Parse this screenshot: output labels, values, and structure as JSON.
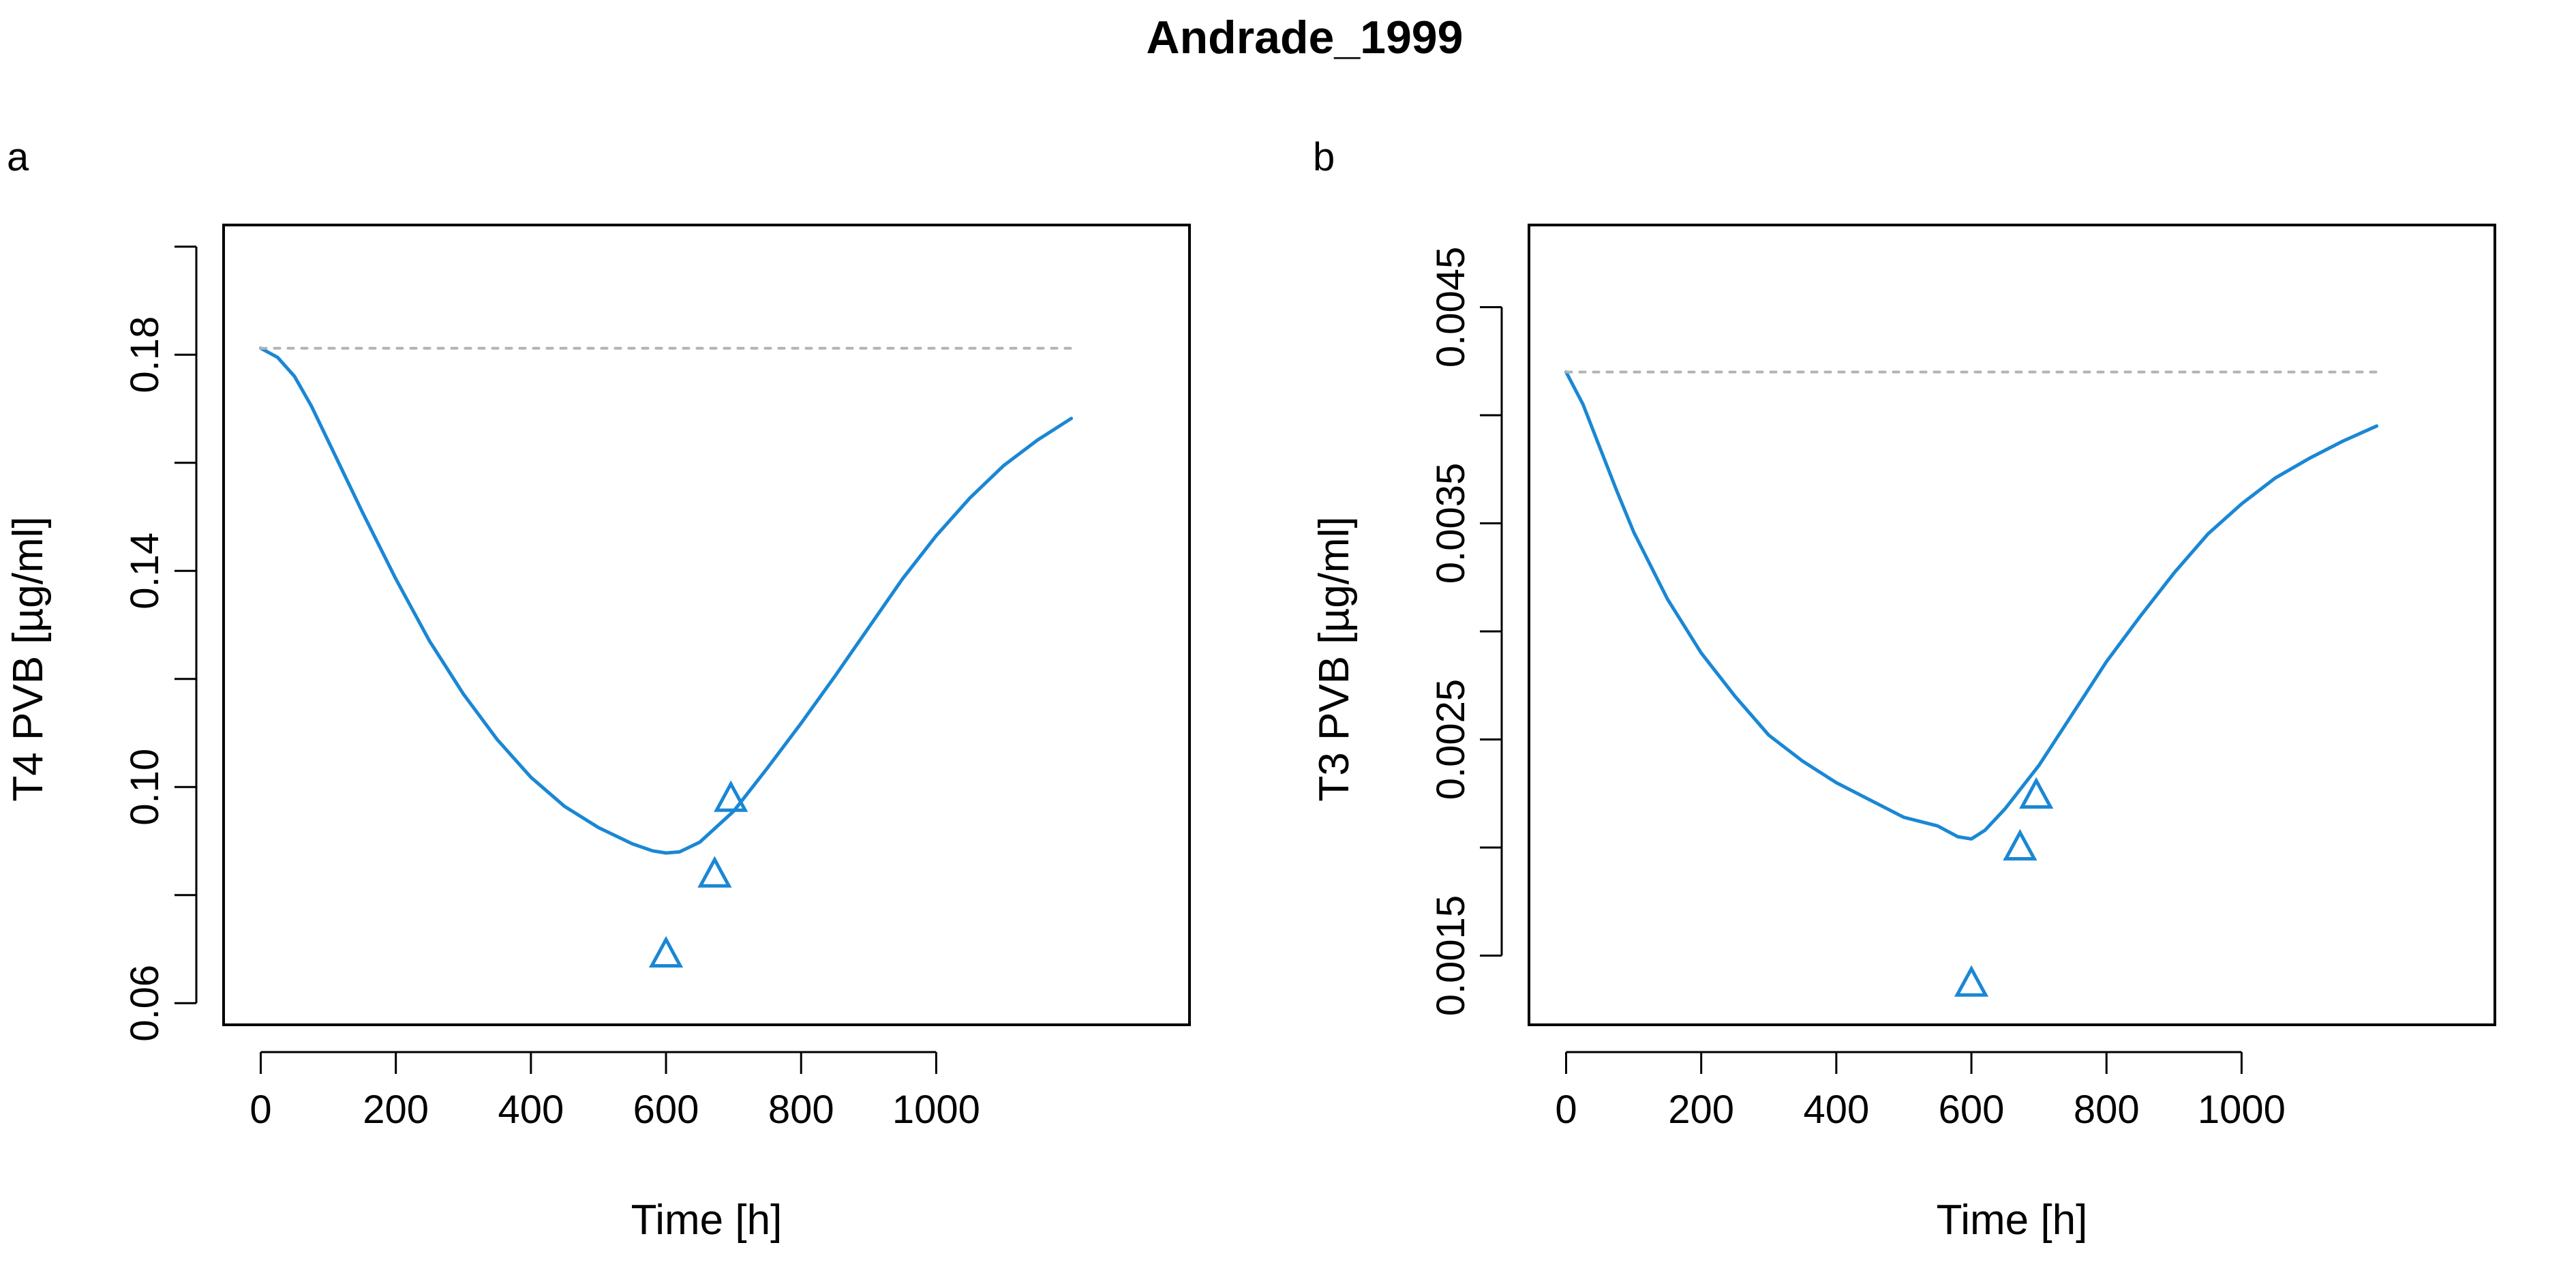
{
  "figure": {
    "title": "Andrade_1999"
  },
  "chart_data": [
    {
      "type": "line",
      "panel_label": "a",
      "title": "",
      "xlabel": "Time [h]",
      "ylabel": "T4 PVB [µg/ml]",
      "xlim": [
        -55,
        1375
      ],
      "ylim": [
        0.056,
        0.204
      ],
      "xticks": [
        0,
        200,
        400,
        600,
        800,
        1000
      ],
      "yticks": [
        0.06,
        0.08,
        0.1,
        0.12,
        0.14,
        0.16,
        0.18,
        0.2
      ],
      "ytick_labels": [
        "0.06",
        "",
        "0.10",
        "",
        "0.14",
        "",
        "0.18",
        ""
      ],
      "grid": false,
      "legend": "none",
      "colors": {
        "model": "#1a87d4",
        "baseline": "#b3b3b3",
        "observed": "#1a87d4"
      },
      "series": [
        {
          "role": "model",
          "style": "solid",
          "x": [
            0,
            25,
            50,
            75,
            100,
            150,
            200,
            250,
            300,
            350,
            400,
            450,
            500,
            550,
            580,
            600,
            620,
            650,
            700,
            750,
            800,
            850,
            900,
            950,
            1000,
            1050,
            1100,
            1150,
            1200
          ],
          "y": [
            0.1812,
            0.1795,
            0.176,
            0.1705,
            0.164,
            0.151,
            0.1385,
            0.127,
            0.1172,
            0.1088,
            0.1018,
            0.0964,
            0.0925,
            0.0895,
            0.0882,
            0.0878,
            0.088,
            0.0898,
            0.0955,
            0.1035,
            0.1118,
            0.1205,
            0.1295,
            0.1385,
            0.1465,
            0.1535,
            0.1595,
            0.1642,
            0.1682
          ]
        },
        {
          "role": "baseline",
          "style": "dotted",
          "x": [
            0,
            1200
          ],
          "y": [
            0.1812,
            0.1812
          ]
        },
        {
          "role": "observed",
          "style": "triangles",
          "x": [
            600,
            672,
            696
          ],
          "y": [
            0.069,
            0.0838,
            0.0978
          ]
        }
      ]
    },
    {
      "type": "line",
      "panel_label": "b",
      "title": "",
      "xlabel": "Time [h]",
      "ylabel": "T3 PVB [µg/ml]",
      "xlim": [
        -55,
        1375
      ],
      "ylim": [
        0.00118,
        0.00488
      ],
      "xticks": [
        0,
        200,
        400,
        600,
        800,
        1000
      ],
      "yticks": [
        0.0015,
        0.002,
        0.0025,
        0.003,
        0.0035,
        0.004,
        0.0045
      ],
      "ytick_labels": [
        "0.0015",
        "",
        "0.0025",
        "",
        "0.0035",
        "",
        "0.0045"
      ],
      "grid": false,
      "legend": "none",
      "colors": {
        "model": "#1a87d4",
        "baseline": "#b3b3b3",
        "observed": "#1a87d4"
      },
      "series": [
        {
          "role": "model",
          "style": "solid",
          "x": [
            0,
            25,
            50,
            75,
            100,
            150,
            200,
            250,
            300,
            350,
            400,
            450,
            500,
            550,
            580,
            600,
            620,
            650,
            700,
            750,
            800,
            850,
            900,
            950,
            1000,
            1050,
            1100,
            1150,
            1200
          ],
          "y": [
            0.0042,
            0.00405,
            0.00385,
            0.00365,
            0.00346,
            0.00315,
            0.0029,
            0.0027,
            0.00252,
            0.0024,
            0.0023,
            0.00222,
            0.00214,
            0.0021,
            0.00205,
            0.00204,
            0.00208,
            0.00218,
            0.00238,
            0.00262,
            0.00286,
            0.00307,
            0.00327,
            0.00345,
            0.00359,
            0.00371,
            0.0038,
            0.00388,
            0.00395
          ]
        },
        {
          "role": "baseline",
          "style": "dotted",
          "x": [
            0,
            1200
          ],
          "y": [
            0.0042,
            0.0042
          ]
        },
        {
          "role": "observed",
          "style": "triangles",
          "x": [
            600,
            672,
            696
          ],
          "y": [
            0.00137,
            0.002,
            0.00224
          ]
        }
      ]
    }
  ]
}
